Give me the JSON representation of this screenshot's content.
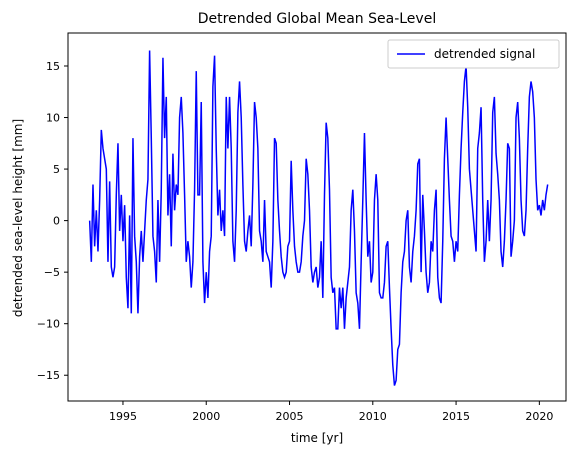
{
  "chart_data": {
    "type": "line",
    "title": "Detrended Global Mean Sea-Level",
    "xlabel": "time [yr]",
    "ylabel": "detrended sea-level height [mm]",
    "xlim": [
      1991.7,
      2021.6
    ],
    "ylim": [
      -17.5,
      18.2
    ],
    "x_ticks": [
      1995,
      2000,
      2005,
      2010,
      2015,
      2020
    ],
    "y_ticks": [
      -15,
      -10,
      -5,
      0,
      5,
      10,
      15
    ],
    "x_tick_labels": [
      "1995",
      "2000",
      "2005",
      "2010",
      "2015",
      "2020"
    ],
    "y_tick_labels": [
      "−15",
      "−10",
      "−5",
      "0",
      "5",
      "10",
      "15"
    ],
    "grid": false,
    "legend_position": "top-right",
    "series": [
      {
        "name": "detrended signal",
        "color": "#0000ff",
        "x": [
          1993.0,
          1993.1,
          1993.2,
          1993.3,
          1993.4,
          1993.5,
          1993.6,
          1993.7,
          1993.8,
          1993.9,
          1994.0,
          1994.1,
          1994.2,
          1994.3,
          1994.4,
          1994.5,
          1994.6,
          1994.7,
          1994.8,
          1994.9,
          1995.0,
          1995.1,
          1995.2,
          1995.3,
          1995.4,
          1995.5,
          1995.6,
          1995.7,
          1995.8,
          1995.9,
          1996.0,
          1996.1,
          1996.2,
          1996.3,
          1996.4,
          1996.5,
          1996.6,
          1996.7,
          1996.8,
          1996.9,
          1997.0,
          1997.1,
          1997.2,
          1997.3,
          1997.4,
          1997.5,
          1997.6,
          1997.7,
          1997.8,
          1997.9,
          1998.0,
          1998.1,
          1998.2,
          1998.3,
          1998.4,
          1998.5,
          1998.6,
          1998.7,
          1998.8,
          1998.9,
          1999.0,
          1999.1,
          1999.2,
          1999.3,
          1999.4,
          1999.5,
          1999.6,
          1999.7,
          1999.8,
          1999.9,
          2000.0,
          2000.1,
          2000.2,
          2000.3,
          2000.4,
          2000.5,
          2000.6,
          2000.7,
          2000.8,
          2000.9,
          2001.0,
          2001.1,
          2001.2,
          2001.3,
          2001.4,
          2001.5,
          2001.6,
          2001.7,
          2001.8,
          2001.9,
          2002.0,
          2002.1,
          2002.2,
          2002.3,
          2002.4,
          2002.5,
          2002.6,
          2002.7,
          2002.8,
          2002.9,
          2003.0,
          2003.1,
          2003.2,
          2003.3,
          2003.4,
          2003.5,
          2003.6,
          2003.7,
          2003.8,
          2003.9,
          2004.0,
          2004.1,
          2004.2,
          2004.3,
          2004.4,
          2004.5,
          2004.6,
          2004.7,
          2004.8,
          2004.9,
          2005.0,
          2005.1,
          2005.2,
          2005.3,
          2005.4,
          2005.5,
          2005.6,
          2005.7,
          2005.8,
          2005.9,
          2006.0,
          2006.1,
          2006.2,
          2006.3,
          2006.4,
          2006.5,
          2006.6,
          2006.7,
          2006.8,
          2006.9,
          2007.0,
          2007.1,
          2007.2,
          2007.3,
          2007.4,
          2007.5,
          2007.6,
          2007.7,
          2007.8,
          2007.9,
          2008.0,
          2008.1,
          2008.2,
          2008.3,
          2008.4,
          2008.5,
          2008.6,
          2008.7,
          2008.8,
          2008.9,
          2009.0,
          2009.1,
          2009.2,
          2009.3,
          2009.4,
          2009.5,
          2009.6,
          2009.7,
          2009.8,
          2009.9,
          2010.0,
          2010.1,
          2010.2,
          2010.3,
          2010.4,
          2010.5,
          2010.6,
          2010.7,
          2010.8,
          2010.9,
          2011.0,
          2011.1,
          2011.2,
          2011.3,
          2011.4,
          2011.5,
          2011.6,
          2011.7,
          2011.8,
          2011.9,
          2012.0,
          2012.1,
          2012.2,
          2012.3,
          2012.4,
          2012.5,
          2012.6,
          2012.7,
          2012.8,
          2012.9,
          2013.0,
          2013.1,
          2013.2,
          2013.3,
          2013.4,
          2013.5,
          2013.6,
          2013.7,
          2013.8,
          2013.9,
          2014.0,
          2014.1,
          2014.2,
          2014.3,
          2014.4,
          2014.5,
          2014.6,
          2014.7,
          2014.8,
          2014.9,
          2015.0,
          2015.1,
          2015.2,
          2015.3,
          2015.4,
          2015.5,
          2015.6,
          2015.7,
          2015.8,
          2015.9,
          2016.0,
          2016.1,
          2016.2,
          2016.3,
          2016.4,
          2016.5,
          2016.6,
          2016.7,
          2016.8,
          2016.9,
          2017.0,
          2017.1,
          2017.2,
          2017.3,
          2017.4,
          2017.5,
          2017.6,
          2017.7,
          2017.8,
          2017.9,
          2018.0,
          2018.1,
          2018.2,
          2018.3,
          2018.4,
          2018.5,
          2018.6,
          2018.7,
          2018.8,
          2018.9,
          2019.0,
          2019.1,
          2019.2,
          2019.3,
          2019.4,
          2019.5,
          2019.6,
          2019.7,
          2019.8,
          2019.9,
          2020.0,
          2020.1,
          2020.2,
          2020.3,
          2020.4,
          2020.5
        ],
        "y": [
          0.0,
          -4.0,
          3.5,
          -2.5,
          1.0,
          -3.0,
          2.0,
          8.8,
          7.0,
          6.0,
          5.0,
          -4.0,
          3.8,
          -4.5,
          -5.5,
          -4.5,
          2.5,
          7.5,
          -1.0,
          2.5,
          -2.0,
          1.5,
          -5.5,
          -8.5,
          0.5,
          -9.0,
          8.0,
          -1.5,
          -4.0,
          -9.0,
          -3.5,
          -1.0,
          -4.0,
          -1.0,
          2.0,
          4.0,
          16.5,
          8.0,
          -1.5,
          -3.0,
          -6.0,
          2.0,
          -4.0,
          3.0,
          15.8,
          8.0,
          12.0,
          0.5,
          4.5,
          -2.5,
          6.5,
          1.0,
          3.5,
          2.5,
          10.0,
          12.0,
          8.5,
          2.5,
          -4.0,
          -2.0,
          -3.5,
          -6.5,
          -4.0,
          3.0,
          14.5,
          2.5,
          2.5,
          11.5,
          -4.0,
          -8.0,
          -5.0,
          -7.5,
          -3.0,
          -1.5,
          13.0,
          16.0,
          7.0,
          0.5,
          3.0,
          -1.0,
          1.0,
          -1.5,
          12.0,
          7.0,
          12.0,
          7.0,
          -2.0,
          -4.0,
          1.0,
          10.5,
          13.5,
          10.0,
          3.5,
          -2.0,
          -3.0,
          -1.0,
          0.5,
          -2.5,
          3.5,
          11.5,
          10.0,
          7.0,
          -1.0,
          -2.0,
          -4.0,
          2.0,
          -3.0,
          -3.5,
          -4.0,
          -6.5,
          -2.0,
          8.0,
          7.5,
          2.0,
          -1.0,
          -3.5,
          -5.0,
          -5.5,
          -5.0,
          -2.5,
          -2.0,
          5.8,
          1.0,
          -2.5,
          -4.0,
          -5.0,
          -5.0,
          -4.0,
          -1.5,
          0.0,
          6.0,
          4.5,
          1.0,
          -4.5,
          -6.0,
          -5.0,
          -4.5,
          -6.5,
          -5.5,
          -2.0,
          -7.5,
          2.5,
          9.5,
          8.0,
          3.0,
          -5.5,
          -7.0,
          -6.5,
          -10.5,
          -10.5,
          -6.5,
          -8.5,
          -6.5,
          -10.5,
          -7.5,
          -6.0,
          -4.5,
          1.0,
          3.0,
          -1.0,
          -7.0,
          -8.0,
          -10.5,
          -4.0,
          2.0,
          8.5,
          2.0,
          -3.5,
          -2.0,
          -6.0,
          -5.0,
          2.0,
          4.5,
          2.0,
          -7.0,
          -7.5,
          -7.5,
          -6.0,
          -2.5,
          -2.0,
          -6.5,
          -10.5,
          -14.0,
          -16.0,
          -15.5,
          -12.5,
          -12.0,
          -7.0,
          -4.0,
          -3.0,
          0.0,
          1.0,
          -4.5,
          -6.0,
          -3.0,
          -1.5,
          1.0,
          5.5,
          6.0,
          -5.0,
          2.5,
          -1.0,
          -5.0,
          -7.0,
          -6.0,
          -2.0,
          -3.0,
          1.0,
          3.0,
          -5.5,
          -7.5,
          -8.0,
          -2.0,
          6.0,
          10.0,
          6.0,
          2.0,
          -1.5,
          -2.0,
          -4.0,
          -2.0,
          -3.0,
          2.5,
          7.0,
          10.5,
          13.5,
          15.0,
          11.0,
          5.0,
          3.0,
          1.0,
          -1.0,
          -3.0,
          7.0,
          8.5,
          11.0,
          2.0,
          -4.0,
          -2.0,
          2.0,
          -2.0,
          2.0,
          10.5,
          12.0,
          6.5,
          4.5,
          2.0,
          -3.0,
          -4.5,
          -2.0,
          2.0,
          7.5,
          7.0,
          -3.5,
          -2.0,
          0.0,
          10.0,
          11.5,
          8.0,
          2.0,
          -1.0,
          -1.5,
          1.0,
          7.0,
          12.0,
          13.5,
          12.5,
          10.0,
          4.0,
          1.0,
          1.5,
          0.5,
          2.0,
          1.0,
          2.5,
          3.5
        ]
      }
    ]
  }
}
